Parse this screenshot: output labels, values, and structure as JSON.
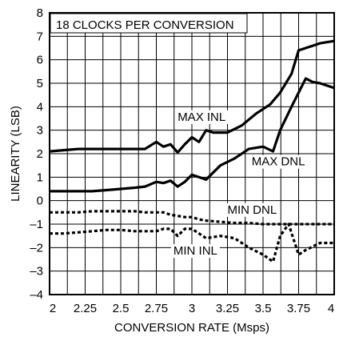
{
  "chart_data": {
    "type": "line",
    "title": "18 CLOCKS PER CONVERSION",
    "xlabel": "CONVERSION RATE (Msps)",
    "ylabel": "LINEARITY (LSB)",
    "xlim": [
      2,
      4
    ],
    "ylim": [
      -4,
      8
    ],
    "xticks": [
      "2",
      "2.25",
      "2.5",
      "2.75",
      "3",
      "3.25",
      "3.5",
      "3.75",
      "4"
    ],
    "yticks": [
      "–4",
      "–3",
      "–2",
      "–1",
      "0",
      "1",
      "2",
      "3",
      "4",
      "5",
      "6",
      "7",
      "8"
    ],
    "grid": true,
    "series": [
      {
        "name": "MAX INL",
        "style": "solid",
        "x": [
          2,
          2.1,
          2.2,
          2.3,
          2.4,
          2.5,
          2.6,
          2.67,
          2.75,
          2.8,
          2.85,
          2.9,
          2.95,
          3.0,
          3.05,
          3.1,
          3.15,
          3.25,
          3.35,
          3.45,
          3.55,
          3.62,
          3.7,
          3.75,
          3.85,
          3.9,
          4.0
        ],
        "y": [
          2.1,
          2.15,
          2.2,
          2.2,
          2.2,
          2.2,
          2.2,
          2.2,
          2.5,
          2.3,
          2.4,
          2.05,
          2.4,
          2.7,
          2.5,
          3.0,
          2.9,
          2.9,
          3.2,
          3.7,
          4.1,
          4.6,
          5.4,
          6.4,
          6.6,
          6.7,
          6.8
        ]
      },
      {
        "name": "MAX DNL",
        "style": "solid",
        "x": [
          2,
          2.1,
          2.2,
          2.3,
          2.4,
          2.5,
          2.6,
          2.67,
          2.75,
          2.8,
          2.85,
          2.9,
          2.95,
          3.0,
          3.1,
          3.2,
          3.3,
          3.4,
          3.5,
          3.57,
          3.62,
          3.7,
          3.8,
          3.85,
          3.9,
          4.0
        ],
        "y": [
          0.4,
          0.4,
          0.4,
          0.4,
          0.45,
          0.5,
          0.55,
          0.6,
          0.8,
          0.75,
          0.85,
          0.6,
          0.8,
          1.1,
          0.9,
          1.5,
          1.8,
          2.2,
          2.3,
          2.1,
          3.0,
          4.0,
          5.2,
          5.05,
          5.0,
          4.8
        ]
      },
      {
        "name": "MIN DNL",
        "style": "dashed",
        "x": [
          2,
          2.1,
          2.2,
          2.3,
          2.4,
          2.5,
          2.6,
          2.67,
          2.75,
          2.8,
          2.85,
          2.9,
          2.95,
          3.0,
          3.05,
          3.1,
          3.2,
          3.3,
          3.4,
          3.5,
          3.6,
          3.7,
          3.8,
          3.9,
          4.0
        ],
        "y": [
          -0.5,
          -0.5,
          -0.5,
          -0.45,
          -0.45,
          -0.45,
          -0.45,
          -0.5,
          -0.5,
          -0.5,
          -0.6,
          -0.65,
          -0.7,
          -0.7,
          -0.8,
          -0.85,
          -0.9,
          -0.95,
          -0.95,
          -1.0,
          -1.0,
          -1.0,
          -1.0,
          -1.0,
          -1.0
        ]
      },
      {
        "name": "MIN INL",
        "style": "dashed",
        "x": [
          2,
          2.1,
          2.2,
          2.3,
          2.4,
          2.5,
          2.6,
          2.67,
          2.75,
          2.8,
          2.85,
          2.9,
          2.95,
          3.0,
          3.05,
          3.1,
          3.2,
          3.3,
          3.4,
          3.5,
          3.57,
          3.62,
          3.68,
          3.75,
          3.8,
          3.9,
          4.0
        ],
        "y": [
          -1.4,
          -1.4,
          -1.35,
          -1.3,
          -1.25,
          -1.25,
          -1.3,
          -1.3,
          -1.3,
          -1.2,
          -1.2,
          -1.5,
          -1.2,
          -1.2,
          -1.4,
          -1.6,
          -1.5,
          -1.6,
          -2.0,
          -2.3,
          -2.6,
          -1.5,
          -1.0,
          -2.3,
          -2.1,
          -1.8,
          -1.8
        ]
      }
    ],
    "annotations": [
      {
        "text": "MAX INL",
        "x": 2.9,
        "y": 3.4
      },
      {
        "text": "MAX DNL",
        "x": 3.42,
        "y": 1.5
      },
      {
        "text": "MIN DNL",
        "x": 3.25,
        "y": -0.55
      },
      {
        "text": "MIN INL",
        "x": 2.87,
        "y": -2.3
      }
    ]
  }
}
